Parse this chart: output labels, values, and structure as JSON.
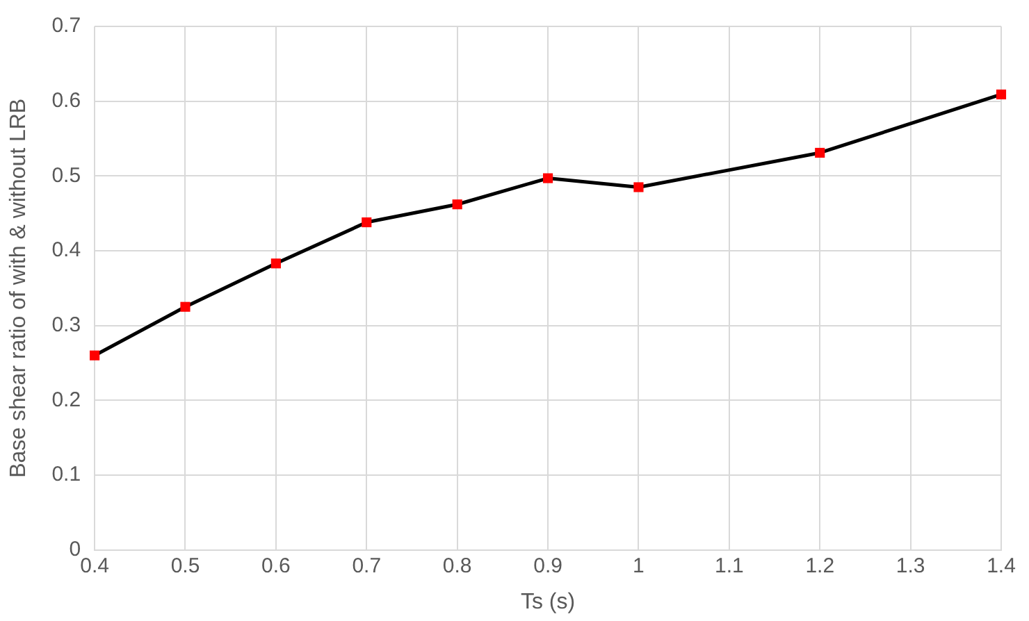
{
  "chart_data": {
    "type": "line",
    "xlabel": "Ts (s)",
    "ylabel": "Base shear ratio of with & without LRB",
    "x": [
      0.4,
      0.5,
      0.6,
      0.7,
      0.8,
      0.9,
      1.0,
      1.2,
      1.4
    ],
    "series": [
      {
        "color": "#000000",
        "colors": [
          "#ff0000",
          "#ff0000",
          "#ff0000",
          "#ff0000",
          "#ff0000",
          "#ff0000",
          "#ff0000",
          "#ff0000",
          "#ff0000"
        ],
        "values": [
          0.26,
          0.325,
          0.383,
          0.438,
          0.462,
          0.497,
          0.485,
          0.531,
          0.609
        ]
      }
    ],
    "xlim": [
      0.4,
      1.4
    ],
    "xticks": [
      0.4,
      0.5,
      0.6,
      0.7,
      0.8,
      0.9,
      1,
      1.1,
      1.2,
      1.3,
      1.4
    ],
    "ylim": [
      0,
      0.7
    ],
    "yticks": [
      0,
      0.1,
      0.2,
      0.3,
      0.4,
      0.5,
      0.6,
      0.7
    ],
    "grid": true,
    "marker": "square",
    "line_style": "solid",
    "legend": false
  }
}
